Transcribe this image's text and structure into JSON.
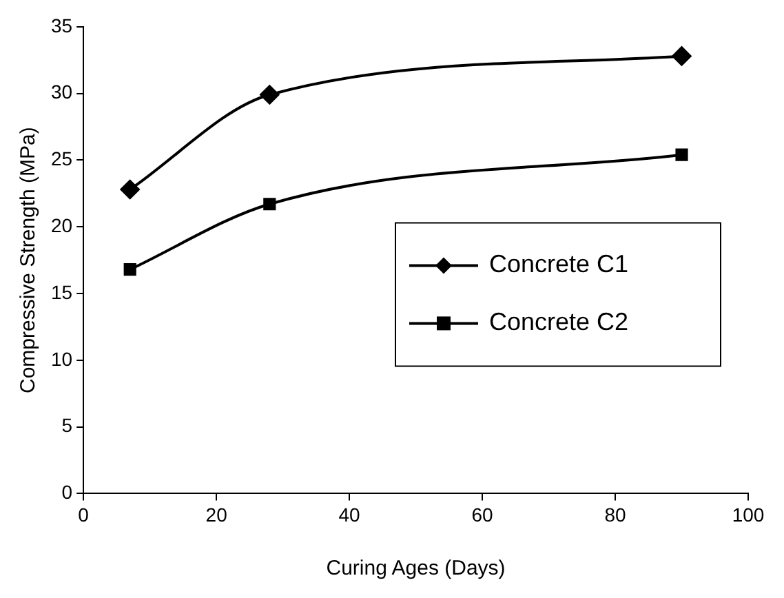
{
  "chart_data": {
    "type": "line",
    "xlabel": "Curing Ages (Days)",
    "ylabel": "Compressive Strength (MPa)",
    "xlim": [
      0,
      100
    ],
    "xticks": [
      0,
      20,
      40,
      60,
      80,
      100
    ],
    "ylim": [
      0,
      35
    ],
    "yticks": [
      0,
      5,
      10,
      15,
      20,
      25,
      30,
      35
    ],
    "grid": false,
    "legend": "center right",
    "series": [
      {
        "name": "Concrete C1",
        "color": "#000000",
        "marker": "diamond",
        "x": [
          7,
          28,
          90
        ],
        "values": [
          22.8,
          29.9,
          32.8
        ]
      },
      {
        "name": "Concrete C2",
        "color": "#000000",
        "marker": "square",
        "x": [
          7,
          28,
          90
        ],
        "values": [
          16.8,
          21.7,
          25.4
        ]
      }
    ]
  }
}
